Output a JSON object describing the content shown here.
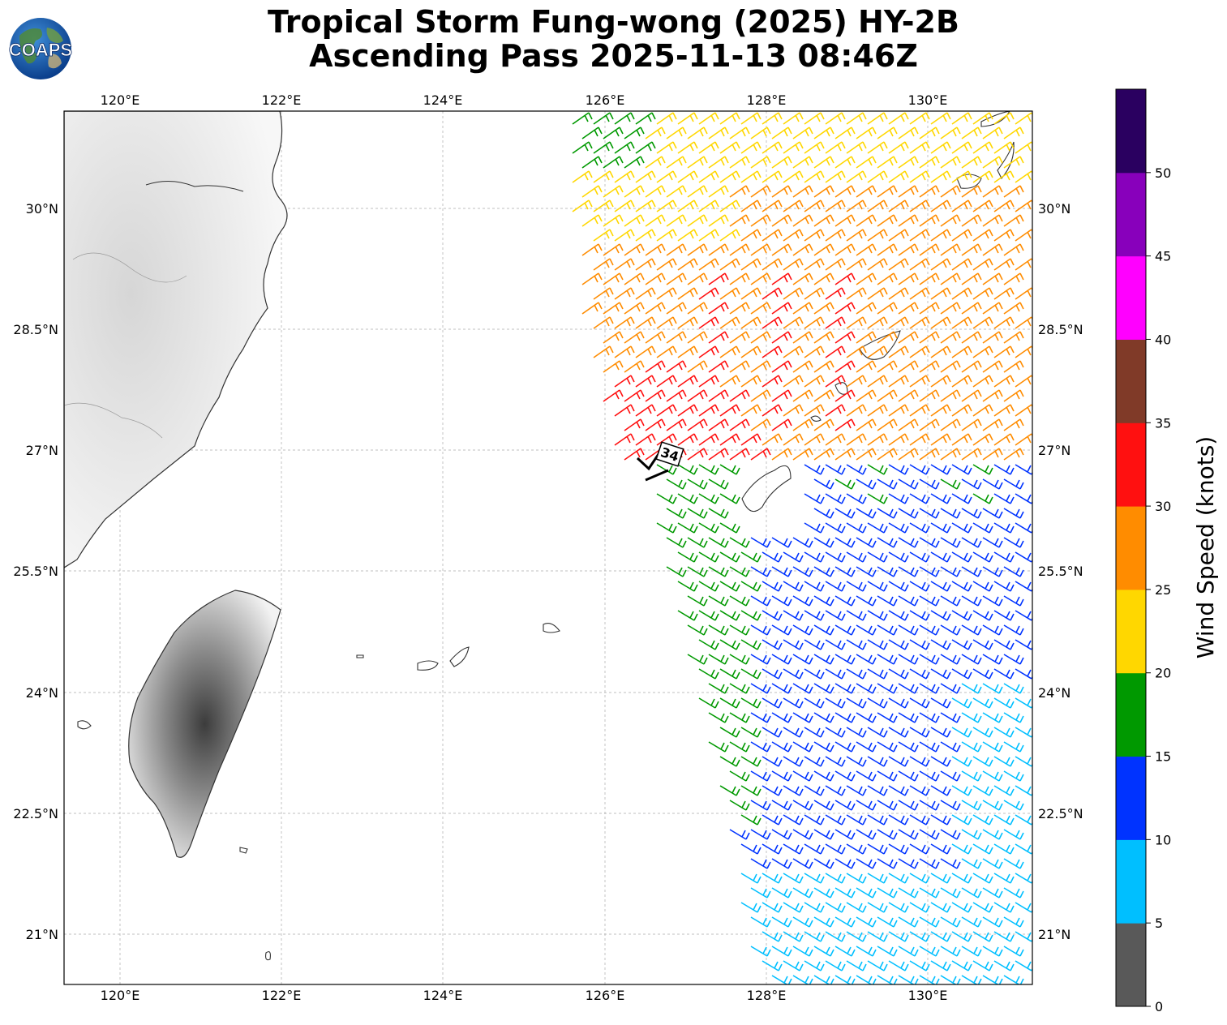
{
  "title": {
    "line1": "Tropical Storm Fung-wong (2025) HY-2B",
    "line2": "Ascending Pass 2025-11-13 08:46Z"
  },
  "logo": {
    "text": "COAPS",
    "icon": "globe-icon"
  },
  "map": {
    "lon_ticks": [
      "120°E",
      "122°E",
      "124°E",
      "126°E",
      "128°E",
      "130°E"
    ],
    "lat_ticks": [
      "30°N",
      "28.5°N",
      "27°N",
      "25.5°N",
      "24°N",
      "22.5°N",
      "21°N"
    ],
    "grid": true,
    "storm_marker": {
      "label": "34"
    }
  },
  "colorbar": {
    "label": "Wind Speed (knots)",
    "ticks": [
      "0",
      "5",
      "10",
      "15",
      "20",
      "25",
      "30",
      "35",
      "40",
      "45",
      "50"
    ],
    "colors": [
      "#595959",
      "#00bfff",
      "#0033ff",
      "#009900",
      "#ffd700",
      "#ff8c00",
      "#ff1010",
      "#803a28",
      "#ff00ff",
      "#8800bb",
      "#2a0060"
    ]
  },
  "colors": {
    "coast": "#333333",
    "grid": "#aaaaaa",
    "storm_marker": "#000000"
  }
}
